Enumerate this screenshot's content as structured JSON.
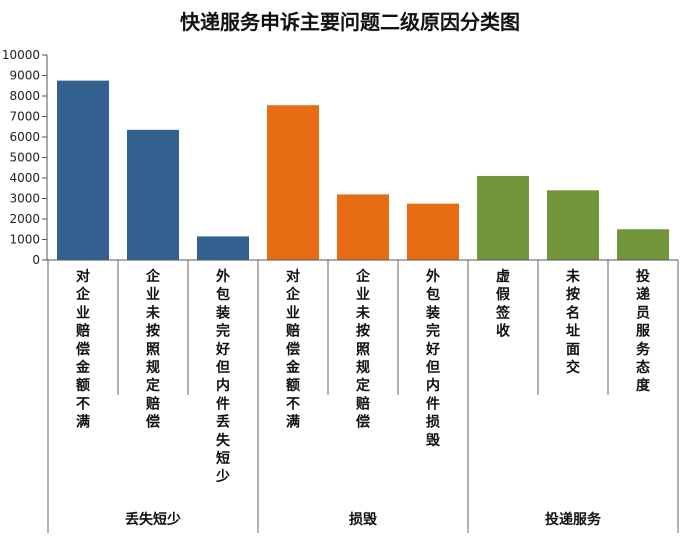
{
  "chart_data": {
    "type": "bar",
    "title": "快递服务申诉主要问题二级原因分类图",
    "ylim": [
      0,
      10000
    ],
    "yticks": [
      0,
      1000,
      2000,
      3000,
      4000,
      5000,
      6000,
      7000,
      8000,
      9000,
      10000
    ],
    "grid": false,
    "groups": [
      {
        "name": "丢失短少",
        "color": "#33618f",
        "categories": [
          "对企业赔偿金额不满",
          "企业未按照规定赔偿",
          "外包装完好但内件丢失短少"
        ],
        "values": [
          8750,
          6350,
          1150
        ]
      },
      {
        "name": "损毁",
        "color": "#e86c13",
        "categories": [
          "对企业赔偿金额不满",
          "企业未按照规定赔偿",
          "外包装完好但内件损毁"
        ],
        "values": [
          7550,
          3200,
          2750
        ]
      },
      {
        "name": "投递服务",
        "color": "#74963a",
        "categories": [
          "虚假签收",
          "未按名址面交",
          "投递员服务态度"
        ],
        "values": [
          4100,
          3400,
          1500
        ]
      }
    ]
  }
}
